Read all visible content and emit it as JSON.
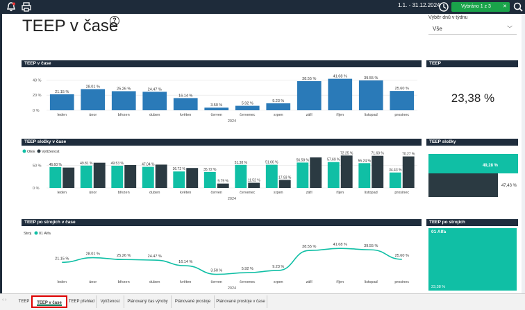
{
  "topbar": {
    "date_range": "1.1. - 31.12.2024",
    "filter_label": "Vybráno 1 z 3"
  },
  "page": {
    "title": "TEEP v čase",
    "help": "?"
  },
  "slicer": {
    "label": "Výběr dnů v týdnu",
    "value": "Vše"
  },
  "panels": {
    "teep_time": "TEEP v čase",
    "teep": "TEEP",
    "teep_components_time": "TEEP složky v čase",
    "teep_components": "TEEP složky",
    "teep_machines_time": "TEEP po strojích v čase",
    "teep_machines": "TEEP po strojích"
  },
  "card": {
    "teep_value": "23,38 %"
  },
  "components_card": {
    "oee_label": "49,28 %",
    "util_label": "47,43 %",
    "oee": 49.28,
    "util": 47.43
  },
  "machines_card": {
    "name": "01 Alfa",
    "value": "23,38 %"
  },
  "legend2": {
    "oee": "OEE",
    "util": "Vytíženost"
  },
  "legend3": {
    "title": "Stroj",
    "series": "01 Alfa"
  },
  "colors": {
    "blue": "#2a7ab8",
    "teal": "#10bfa5",
    "dark": "#2b3a42",
    "header": "#1f2d3d"
  },
  "chart_data": [
    {
      "type": "bar",
      "title": "TEEP v čase",
      "xlabel": "2024",
      "categories": [
        "leden",
        "únor",
        "březen",
        "duben",
        "květen",
        "červen",
        "červenec",
        "srpen",
        "září",
        "říjen",
        "listopad",
        "prosinec"
      ],
      "values": [
        21.15,
        28.01,
        25.26,
        24.47,
        16.14,
        3.5,
        5.92,
        9.23,
        38.55,
        41.68,
        39.55,
        25.6
      ],
      "labels": [
        "21.15 %",
        "28.01 %",
        "25.26 %",
        "24.47 %",
        "16.14 %",
        "3.50 %",
        "5.92 %",
        "9.23 %",
        "38.55 %",
        "41.68 %",
        "39.55 %",
        "25.60 %"
      ],
      "yticks": [
        "0 %",
        "20 %",
        "40 %"
      ],
      "ylim": [
        0,
        45
      ]
    },
    {
      "type": "bar",
      "title": "TEEP složky v čase",
      "xlabel": "2024",
      "categories": [
        "leden",
        "únor",
        "březen",
        "duben",
        "květen",
        "červen",
        "červenec",
        "srpen",
        "září",
        "říjen",
        "listopad",
        "prosinec"
      ],
      "series": [
        {
          "name": "OEE",
          "values": [
            46.6,
            49.81,
            49.53,
            47.04,
            36.72,
            35.72,
            51.38,
            51.66,
            56.58,
            57.69,
            55.24,
            34.43
          ],
          "labels": [
            "46.60 %",
            "49.81 %",
            "49.53 %",
            "47.04 %",
            "36.72 %",
            "35.72 %",
            "51.38 %",
            "51.66 %",
            "56.58 %",
            "57.69 %",
            "55.24 %",
            "34.43 %"
          ]
        },
        {
          "name": "Vytíženost",
          "values": [
            null,
            null,
            null,
            null,
            null,
            9.79,
            11.52,
            17.93,
            null,
            72.25,
            71.6,
            70.27
          ],
          "labels": [
            "",
            "",
            "",
            "",
            "",
            "9.79 %",
            "11.52 %",
            "17.93 %",
            "",
            "72.25 %",
            "71.60 %",
            "70.27 %"
          ],
          "visual": [
            45.4,
            56.2,
            51.0,
            52.0,
            44.5,
            9.79,
            11.52,
            17.93,
            68.1,
            72.25,
            71.6,
            70.27
          ]
        }
      ],
      "yticks": [
        "0 %",
        "50 %"
      ],
      "ylim": [
        0,
        80
      ]
    },
    {
      "type": "line",
      "title": "TEEP po strojích v čase",
      "xlabel": "2024",
      "categories": [
        "leden",
        "únor",
        "březen",
        "duben",
        "květen",
        "červen",
        "červenec",
        "srpen",
        "září",
        "říjen",
        "listopad",
        "prosinec"
      ],
      "series": [
        {
          "name": "01 Alfa",
          "values": [
            21.15,
            28.01,
            25.26,
            24.47,
            16.14,
            3.5,
            5.92,
            9.23,
            38.55,
            41.68,
            39.55,
            25.6
          ]
        }
      ],
      "labels": [
        "21.15 %",
        "28.01 %",
        "25.26 %",
        "24.47 %",
        "16.14 %",
        "3.50 %",
        "5.92 %",
        "9.23 %",
        "38.55 %",
        "41.68 %",
        "39.55 %",
        "25.60 %"
      ],
      "ylim": [
        0,
        45
      ]
    }
  ],
  "tabs": [
    "TEEP",
    "TEEP v čase",
    "TEEP přehled",
    "Vytíženost",
    "Plánovaný čas výroby",
    "Plánované prostoje",
    "Plánované prostoje v čase"
  ],
  "nav_arrows": "‹ ›"
}
